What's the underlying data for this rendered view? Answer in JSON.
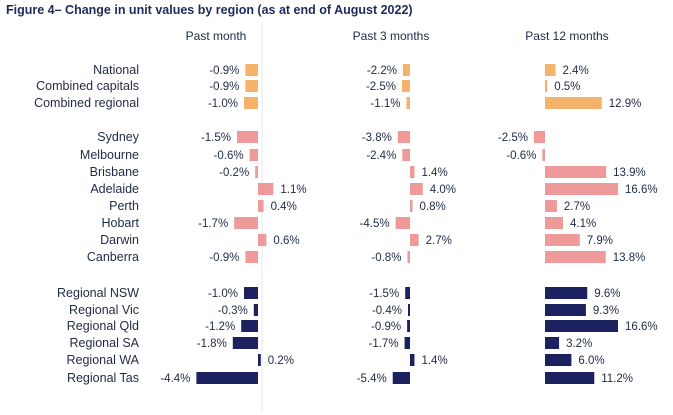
{
  "title": "Figure 4– Change in unit values by region (as at end of August 2022)",
  "chart_data": {
    "type": "bar",
    "orientation": "horizontal",
    "title": "Figure 4– Change in unit values by region (as at end of August 2022)",
    "panels": [
      "Past month",
      "Past 3 months",
      "Past 12 months"
    ],
    "categories": [
      "National",
      "Combined capitals",
      "Combined regional",
      "Sydney",
      "Melbourne",
      "Brisbane",
      "Adelaide",
      "Perth",
      "Hobart",
      "Darwin",
      "Canberra",
      "Regional NSW",
      "Regional Vic",
      "Regional Qld",
      "Regional SA",
      "Regional WA",
      "Regional Tas"
    ],
    "groups": [
      {
        "range": [
          0,
          2
        ],
        "color": "#f5b26b"
      },
      {
        "range": [
          3,
          10
        ],
        "color": "#ef9a9a"
      },
      {
        "range": [
          11,
          16
        ],
        "color": "#1c2260"
      }
    ],
    "series": [
      {
        "values": [
          -0.9,
          -0.9,
          -1.0,
          -1.5,
          -0.6,
          -0.2,
          1.1,
          0.4,
          -1.7,
          0.6,
          -0.9,
          -1.0,
          -0.3,
          -1.2,
          -1.8,
          0.2,
          -4.4
        ]
      },
      {
        "values": [
          -2.2,
          -2.5,
          -1.1,
          -3.8,
          -2.4,
          1.4,
          4.0,
          0.8,
          -4.5,
          2.7,
          -0.8,
          -1.5,
          -0.4,
          -0.9,
          -1.7,
          1.4,
          -5.4
        ]
      },
      {
        "values": [
          2.4,
          0.5,
          12.9,
          -2.5,
          -0.6,
          13.9,
          16.6,
          2.7,
          4.1,
          7.9,
          13.8,
          9.6,
          9.3,
          16.6,
          3.2,
          6.0,
          11.2
        ]
      }
    ],
    "value_format": "{v}%"
  }
}
